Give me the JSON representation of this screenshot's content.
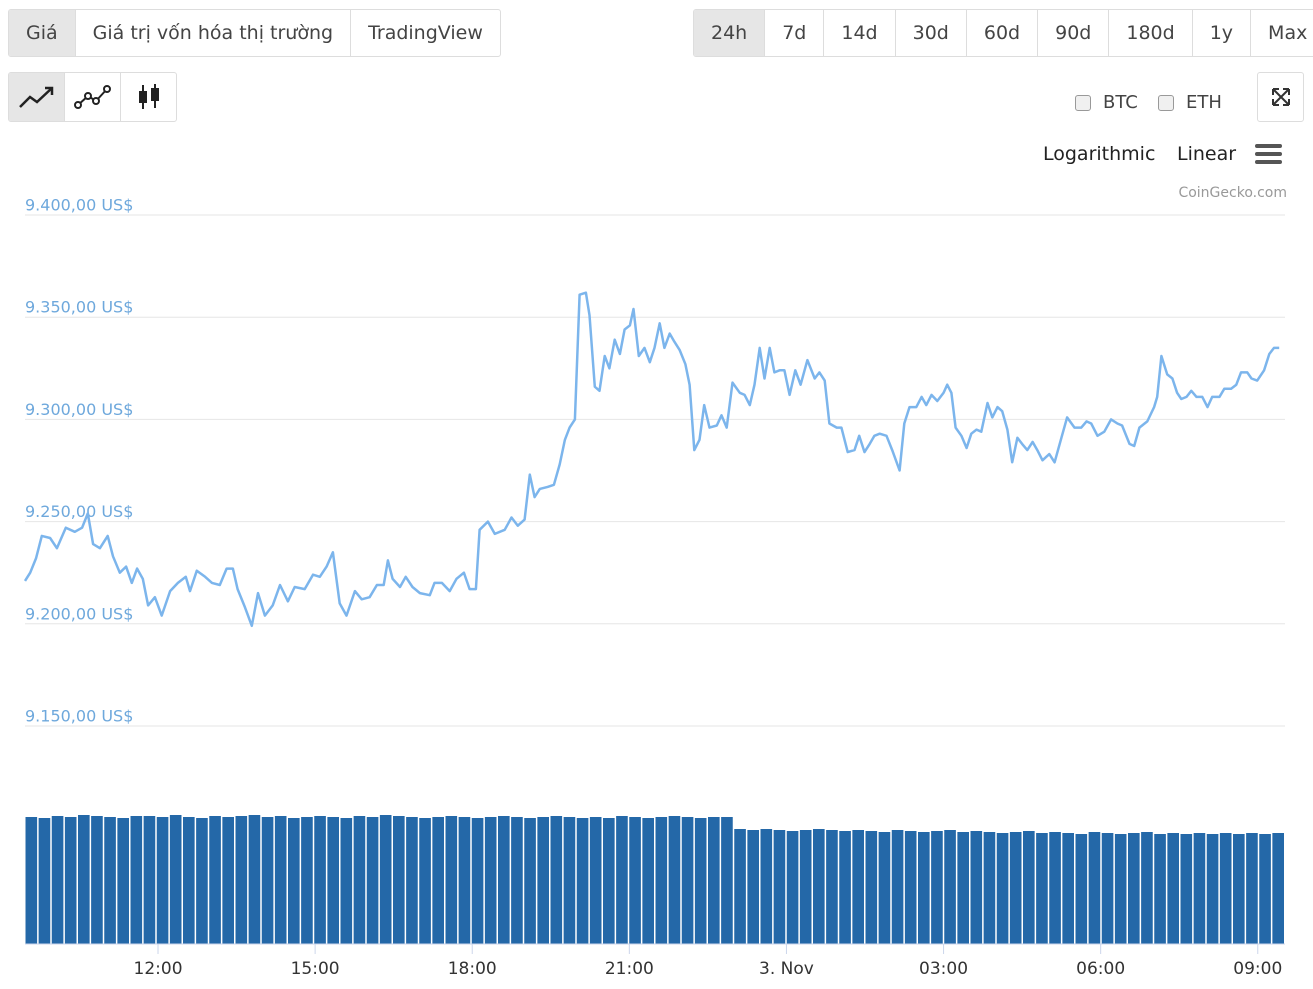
{
  "ui": {
    "tabs": [
      "Giá",
      "Giá trị vốn hóa thị trường",
      "TradingView"
    ],
    "active_tab": 0,
    "ranges": [
      "24h",
      "7d",
      "14d",
      "30d",
      "60d",
      "90d",
      "180d",
      "1y",
      "Max"
    ],
    "active_range": 0,
    "compare": [
      "BTC",
      "ETH"
    ],
    "scales": [
      "Logarithmic",
      "Linear"
    ],
    "credit": "CoinGecko.com"
  },
  "chart_data": {
    "type": "line",
    "color": "#7cb5ec",
    "grid": true,
    "xlim": [
      9.46,
      33.52
    ],
    "xticks": [
      {
        "value": 12,
        "label": "12:00"
      },
      {
        "value": 15,
        "label": "15:00"
      },
      {
        "value": 18,
        "label": "18:00"
      },
      {
        "value": 21,
        "label": "21:00"
      },
      {
        "value": 24,
        "label": "3. Nov"
      },
      {
        "value": 27,
        "label": "03:00"
      },
      {
        "value": 30,
        "label": "06:00"
      },
      {
        "value": 33,
        "label": "09:00"
      }
    ],
    "ylim": [
      9150,
      9400
    ],
    "yticks": [
      {
        "value": 9150,
        "label": "9.150,00 US$"
      },
      {
        "value": 9200,
        "label": "9.200,00 US$"
      },
      {
        "value": 9250,
        "label": "9.250,00 US$"
      },
      {
        "value": 9300,
        "label": "9.300,00 US$"
      },
      {
        "value": 9350,
        "label": "9.350,00 US$"
      },
      {
        "value": 9400,
        "label": "9.400,00 US$"
      }
    ],
    "x": [
      9.46,
      9.56,
      9.67,
      9.78,
      9.94,
      10.07,
      10.24,
      10.41,
      10.55,
      10.66,
      10.76,
      10.89,
      11.04,
      11.14,
      11.27,
      11.39,
      11.5,
      11.6,
      11.71,
      11.81,
      11.94,
      12.07,
      12.23,
      12.38,
      12.53,
      12.61,
      12.74,
      12.9,
      13.03,
      13.18,
      13.31,
      13.43,
      13.52,
      13.66,
      13.79,
      13.91,
      14.04,
      14.19,
      14.33,
      14.48,
      14.61,
      14.8,
      14.96,
      15.09,
      15.22,
      15.34,
      15.47,
      15.6,
      15.76,
      15.89,
      16.04,
      16.18,
      16.31,
      16.39,
      16.48,
      16.62,
      16.73,
      16.86,
      17.0,
      17.19,
      17.28,
      17.42,
      17.57,
      17.7,
      17.84,
      17.95,
      18.07,
      18.14,
      18.3,
      18.43,
      18.62,
      18.75,
      18.87,
      19.0,
      19.1,
      19.19,
      19.29,
      19.44,
      19.56,
      19.67,
      19.77,
      19.86,
      19.96,
      20.05,
      20.17,
      20.24,
      20.34,
      20.43,
      20.53,
      20.62,
      20.72,
      20.82,
      20.91,
      21.01,
      21.08,
      21.18,
      21.29,
      21.39,
      21.48,
      21.58,
      21.67,
      21.77,
      21.86,
      21.96,
      22.07,
      22.15,
      22.24,
      22.34,
      22.43,
      22.53,
      22.67,
      22.76,
      22.86,
      22.97,
      23.11,
      23.2,
      23.3,
      23.39,
      23.49,
      23.58,
      23.68,
      23.77,
      23.87,
      23.96,
      24.06,
      24.17,
      24.27,
      24.4,
      24.54,
      24.63,
      24.73,
      24.82,
      24.96,
      25.05,
      25.17,
      25.3,
      25.39,
      25.49,
      25.59,
      25.68,
      25.78,
      25.91,
      26.02,
      26.16,
      26.25,
      26.35,
      26.48,
      26.58,
      26.67,
      26.77,
      26.88,
      27.0,
      27.07,
      27.15,
      27.23,
      27.34,
      27.44,
      27.53,
      27.63,
      27.72,
      27.84,
      27.93,
      28.03,
      28.12,
      28.22,
      28.31,
      28.41,
      28.5,
      28.6,
      28.7,
      28.79,
      28.89,
      29.02,
      29.12,
      29.25,
      29.36,
      29.5,
      29.63,
      29.73,
      29.82,
      29.94,
      30.07,
      30.2,
      30.32,
      30.41,
      30.55,
      30.64,
      30.74,
      30.89,
      31.02,
      31.08,
      31.16,
      31.27,
      31.37,
      31.46,
      31.54,
      31.64,
      31.73,
      31.83,
      31.94,
      32.04,
      32.13,
      32.27,
      32.36,
      32.49,
      32.59,
      32.68,
      32.8,
      32.88,
      32.99,
      33.12,
      33.22,
      33.31,
      33.41
    ],
    "values": [
      9221,
      9225,
      9232,
      9243,
      9242,
      9237,
      9247,
      9245,
      9247,
      9254,
      9239,
      9237,
      9243,
      9233,
      9225,
      9228,
      9220,
      9227,
      9222,
      9209,
      9213,
      9204,
      9216,
      9220,
      9223,
      9216,
      9226,
      9223,
      9220,
      9219,
      9227,
      9227,
      9217,
      9208,
      9199,
      9215,
      9204,
      9209,
      9219,
      9211,
      9218,
      9217,
      9224,
      9223,
      9228,
      9235,
      9210,
      9204,
      9216,
      9212,
      9213,
      9219,
      9219,
      9231,
      9222,
      9218,
      9223,
      9218,
      9215,
      9214,
      9220,
      9220,
      9216,
      9222,
      9225,
      9217,
      9217,
      9246,
      9250,
      9244,
      9246,
      9252,
      9248,
      9251,
      9273,
      9262,
      9266,
      9267,
      9268,
      9278,
      9290,
      9296,
      9300,
      9361,
      9362,
      9351,
      9316,
      9314,
      9331,
      9325,
      9339,
      9332,
      9344,
      9346,
      9354,
      9331,
      9335,
      9328,
      9335,
      9347,
      9335,
      9342,
      9338,
      9334,
      9327,
      9317,
      9285,
      9290,
      9307,
      9296,
      9297,
      9302,
      9296,
      9318,
      9313,
      9312,
      9307,
      9317,
      9335,
      9320,
      9335,
      9323,
      9324,
      9324,
      9312,
      9324,
      9317,
      9329,
      9320,
      9323,
      9319,
      9298,
      9296,
      9296,
      9284,
      9285,
      9292,
      9284,
      9288,
      9292,
      9293,
      9292,
      9285,
      9275,
      9298,
      9306,
      9306,
      9311,
      9307,
      9312,
      9309,
      9313,
      9317,
      9313,
      9296,
      9292,
      9286,
      9293,
      9295,
      9294,
      9308,
      9301,
      9306,
      9304,
      9295,
      9279,
      9291,
      9288,
      9285,
      9289,
      9285,
      9280,
      9283,
      9279,
      9291,
      9301,
      9296,
      9296,
      9299,
      9298,
      9292,
      9294,
      9300,
      9298,
      9297,
      9288,
      9287,
      9296,
      9299,
      9306,
      9311,
      9331,
      9322,
      9320,
      9313,
      9310,
      9311,
      9314,
      9311,
      9311,
      9306,
      9311,
      9311,
      9315,
      9315,
      9317,
      9323,
      9323,
      9320,
      9319,
      9324,
      9332,
      9335,
      9335
    ],
    "volume": {
      "color": "#2468a8",
      "ylim": [
        0,
        150
      ],
      "values": [
        127,
        126,
        128,
        127,
        129,
        128,
        127,
        126,
        128,
        128,
        127,
        129,
        127,
        126,
        128,
        127,
        128,
        129,
        127,
        128,
        126,
        127,
        128,
        127,
        126,
        128,
        127,
        129,
        128,
        127,
        126,
        127,
        128,
        127,
        126,
        127,
        128,
        127,
        126,
        127,
        128,
        127,
        126,
        127,
        126,
        128,
        127,
        126,
        127,
        128,
        127,
        126,
        127,
        127,
        115,
        114,
        115,
        114,
        113,
        114,
        115,
        114,
        113,
        114,
        113,
        112,
        114,
        113,
        112,
        113,
        114,
        112,
        113,
        112,
        111,
        112,
        113,
        111,
        112,
        111,
        110,
        112,
        111,
        110,
        111,
        112,
        110,
        111,
        110,
        111,
        110,
        111,
        110,
        111,
        110,
        111
      ]
    }
  }
}
